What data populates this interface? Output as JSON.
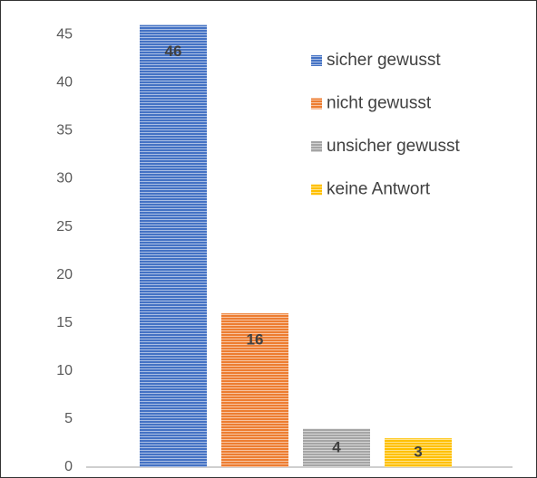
{
  "chart_data": {
    "type": "bar",
    "series": [
      {
        "name": "sicher gewusst",
        "color": "#4472c4",
        "values": [
          46
        ]
      },
      {
        "name": "nicht gewusst",
        "color": "#ed7d31",
        "values": [
          16
        ]
      },
      {
        "name": "unsicher gewusst",
        "color": "#a5a5a5",
        "values": [
          4
        ]
      },
      {
        "name": "keine Antwort",
        "color": "#ffc000",
        "values": [
          3
        ]
      }
    ],
    "ylim": [
      0,
      47
    ],
    "yticks": [
      0,
      5,
      10,
      15,
      20,
      25,
      30,
      35,
      40,
      45
    ],
    "grid": false,
    "legend": "upper right",
    "pattern": "horizontal stripes"
  }
}
